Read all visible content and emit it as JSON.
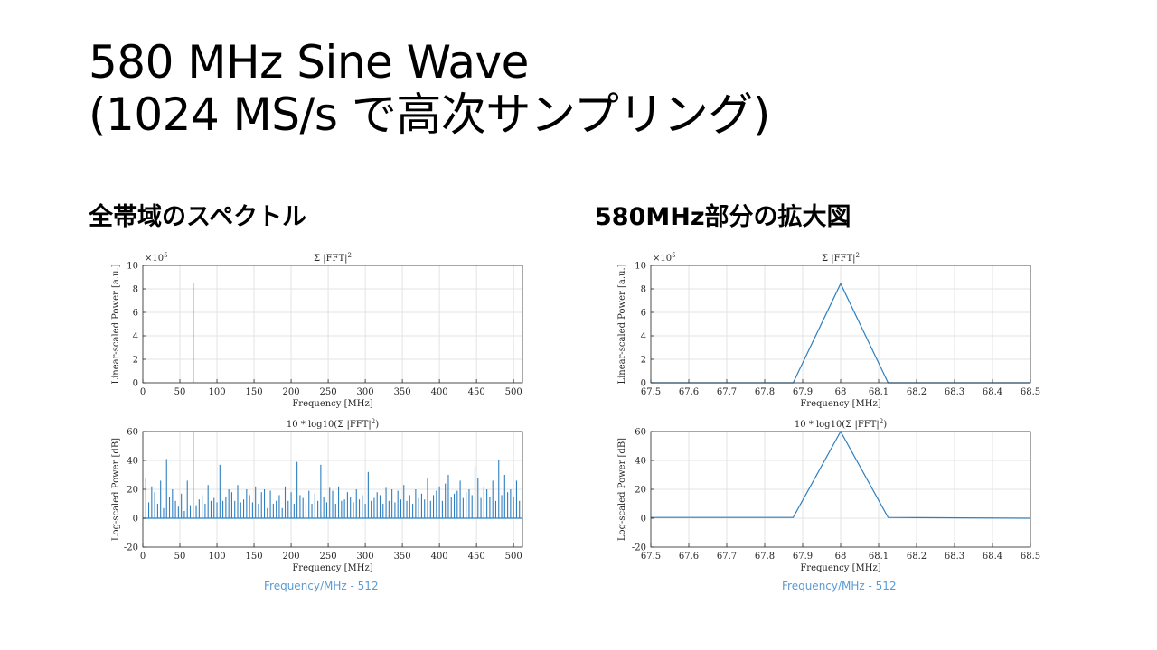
{
  "slide": {
    "title_line1": "580 MHz Sine Wave",
    "title_line2": "(1024 MS/s で高次サンプリング)",
    "left_heading": "全帯域のスペクトル",
    "right_heading": "580MHz部分の拡大図",
    "left_caption": "Frequency/MHz - 512",
    "right_caption": "Frequency/MHz - 512"
  },
  "colors": {
    "line": "#2f7fbf",
    "grid": "#e3e3e3",
    "axis": "#262626",
    "caption": "#5b9bd5"
  },
  "chart_data": [
    {
      "id": "full-linear",
      "type": "bar",
      "title": "Σ |FFT|",
      "title_sup": "2",
      "xlabel": "Frequency [MHz]",
      "ylabel": "Linear-scaled Power [a.u.]",
      "exponent_label": "×10",
      "exponent_sup": "5",
      "xlim": [
        0,
        512
      ],
      "ylim": [
        0,
        10
      ],
      "xticks": [
        0,
        50,
        100,
        150,
        200,
        250,
        300,
        350,
        400,
        450,
        500
      ],
      "yticks": [
        0,
        2,
        4,
        6,
        8,
        10
      ],
      "grid": true,
      "x": [
        68
      ],
      "values": [
        8.45
      ]
    },
    {
      "id": "full-log",
      "type": "bar",
      "title": "10 * log10(Σ |FFT|",
      "title_sup": "2",
      "title_end": ")",
      "xlabel": "Frequency [MHz]",
      "ylabel": "Log-scaled Power [dB]",
      "xlim": [
        0,
        512
      ],
      "ylim": [
        -20,
        60
      ],
      "xticks": [
        0,
        50,
        100,
        150,
        200,
        250,
        300,
        350,
        400,
        450,
        500
      ],
      "yticks": [
        -20,
        0,
        20,
        40,
        60
      ],
      "grid": true,
      "baseline": 0,
      "x": [
        4,
        8,
        12,
        16,
        20,
        24,
        28,
        32,
        36,
        40,
        44,
        48,
        52,
        56,
        60,
        64,
        68,
        72,
        76,
        80,
        84,
        88,
        92,
        96,
        100,
        104,
        108,
        112,
        116,
        120,
        124,
        128,
        132,
        136,
        140,
        144,
        148,
        152,
        156,
        160,
        164,
        168,
        172,
        176,
        180,
        184,
        188,
        192,
        196,
        200,
        204,
        208,
        212,
        216,
        220,
        224,
        228,
        232,
        236,
        240,
        244,
        248,
        252,
        256,
        260,
        264,
        268,
        272,
        276,
        280,
        284,
        288,
        292,
        296,
        300,
        304,
        308,
        312,
        316,
        320,
        324,
        328,
        332,
        336,
        340,
        344,
        348,
        352,
        356,
        360,
        364,
        368,
        372,
        376,
        380,
        384,
        388,
        392,
        396,
        400,
        404,
        408,
        412,
        416,
        420,
        424,
        428,
        432,
        436,
        440,
        444,
        448,
        452,
        456,
        460,
        464,
        468,
        472,
        476,
        480,
        484,
        488,
        492,
        496,
        500,
        504,
        508
      ],
      "values": [
        28,
        11,
        22,
        18,
        10,
        26,
        7,
        41,
        15,
        20,
        12,
        8,
        17,
        5,
        26,
        9,
        60,
        9,
        13,
        16,
        10,
        23,
        12,
        14,
        11,
        37,
        12,
        15,
        20,
        18,
        12,
        23,
        11,
        13,
        20,
        16,
        11,
        22,
        10,
        18,
        20,
        7,
        19,
        10,
        12,
        16,
        7,
        22,
        12,
        18,
        10,
        39,
        16,
        14,
        11,
        19,
        10,
        17,
        12,
        37,
        15,
        11,
        21,
        19,
        10,
        22,
        12,
        13,
        18,
        15,
        11,
        20,
        13,
        16,
        10,
        32,
        12,
        14,
        18,
        16,
        10,
        21,
        12,
        20,
        11,
        19,
        13,
        23,
        12,
        16,
        10,
        20,
        14,
        17,
        13,
        28,
        12,
        16,
        19,
        22,
        12,
        24,
        30,
        15,
        17,
        19,
        26,
        14,
        18,
        20,
        16,
        36,
        28,
        14,
        22,
        20,
        15,
        26,
        12,
        40,
        16,
        30,
        18,
        20,
        15,
        26,
        12
      ]
    },
    {
      "id": "zoom-linear",
      "type": "line",
      "title": "Σ |FFT|",
      "title_sup": "2",
      "xlabel": "Frequency [MHz]",
      "ylabel": "Linear-scaled Power [a.u.]",
      "exponent_label": "×10",
      "exponent_sup": "5",
      "xlim": [
        67.5,
        68.5
      ],
      "ylim": [
        0,
        10
      ],
      "xticks": [
        67.5,
        67.6,
        67.7,
        67.8,
        67.9,
        68,
        68.1,
        68.2,
        68.3,
        68.4,
        68.5
      ],
      "yticks": [
        0,
        2,
        4,
        6,
        8,
        10
      ],
      "grid": true,
      "x": [
        67.5,
        67.875,
        68,
        68.125,
        68.5
      ],
      "values": [
        0,
        0,
        8.45,
        0,
        0
      ]
    },
    {
      "id": "zoom-log",
      "type": "line",
      "title": "10 * log10(Σ |FFT|",
      "title_sup": "2",
      "title_end": ")",
      "xlabel": "Frequency [MHz]",
      "ylabel": "Log-scaled Power [dB]",
      "xlim": [
        67.5,
        68.5
      ],
      "ylim": [
        -20,
        60
      ],
      "xticks": [
        67.5,
        67.6,
        67.7,
        67.8,
        67.9,
        68,
        68.1,
        68.2,
        68.3,
        68.4,
        68.5
      ],
      "yticks": [
        -20,
        0,
        20,
        40,
        60
      ],
      "grid": true,
      "x": [
        67.5,
        67.875,
        68,
        68.125,
        68.5
      ],
      "values": [
        0.5,
        0.5,
        60,
        0.5,
        0
      ]
    }
  ]
}
